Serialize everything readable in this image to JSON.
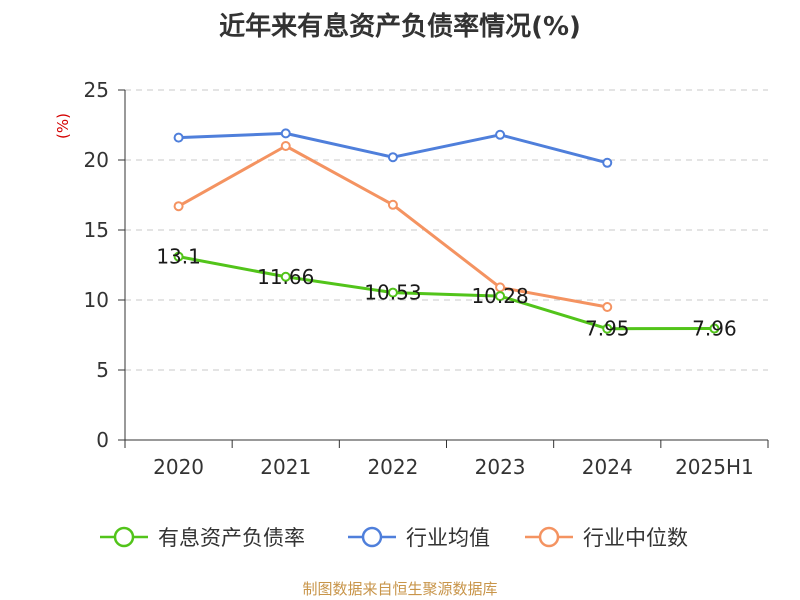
{
  "chart_data": {
    "type": "line",
    "title": "近年来有息资产负债率情况(%)",
    "ylabel": "(%)",
    "categories": [
      "2020",
      "2021",
      "2022",
      "2023",
      "2024",
      "2025H1"
    ],
    "ylim": [
      0,
      25
    ],
    "yticks": [
      0,
      5,
      10,
      15,
      20,
      25
    ],
    "grid": true,
    "legend_position": "bottom",
    "series": [
      {
        "name": "有息资产负债率",
        "color": "#52c41a",
        "values": [
          13.1,
          11.66,
          10.53,
          10.28,
          7.95,
          7.96
        ],
        "labels": [
          "13.1",
          "11.66",
          "10.53",
          "10.28",
          "7.95",
          "7.96"
        ]
      },
      {
        "name": "行业均值",
        "color": "#4f7fdb",
        "values": [
          21.6,
          21.9,
          20.2,
          21.8,
          19.8,
          null
        ]
      },
      {
        "name": "行业中位数",
        "color": "#f49361",
        "values": [
          16.7,
          21.0,
          16.8,
          10.9,
          9.5,
          null
        ]
      }
    ]
  },
  "source_note": "制图数据来自恒生聚源数据库"
}
